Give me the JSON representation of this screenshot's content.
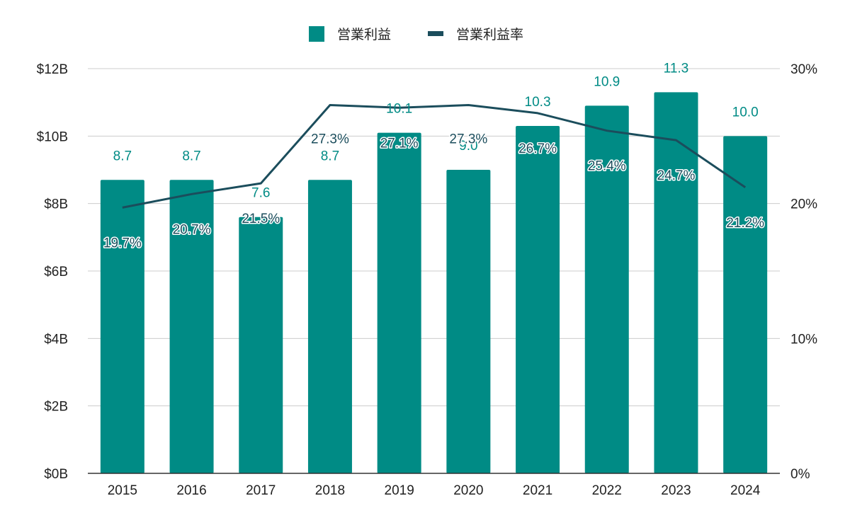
{
  "chart_data": {
    "type": "bar",
    "categories": [
      "2015",
      "2016",
      "2017",
      "2018",
      "2019",
      "2020",
      "2021",
      "2022",
      "2023",
      "2024"
    ],
    "series": [
      {
        "name": "営業利益",
        "type": "bar",
        "axis": "left",
        "color": "#008b85",
        "values": [
          8.7,
          8.7,
          7.6,
          8.7,
          10.1,
          9.0,
          10.3,
          10.9,
          11.3,
          10.0
        ],
        "labels": [
          "8.7",
          "8.7",
          "7.6",
          "8.7",
          "10.1",
          "9.0",
          "10.3",
          "10.9",
          "11.3",
          "10.0"
        ]
      },
      {
        "name": "営業利益率",
        "type": "line",
        "axis": "right",
        "color": "#1b4d5c",
        "values": [
          19.7,
          20.7,
          21.5,
          27.3,
          27.1,
          27.3,
          26.7,
          25.4,
          24.7,
          21.2
        ],
        "labels": [
          "19.7%",
          "20.7%",
          "21.5%",
          "27.3%",
          "27.1%",
          "27.3%",
          "26.7%",
          "25.4%",
          "24.7%",
          "21.2%"
        ]
      }
    ],
    "y_left": {
      "ticks": [
        0,
        2,
        4,
        6,
        8,
        10,
        12
      ],
      "tick_labels": [
        "$0B",
        "$2B",
        "$4B",
        "$6B",
        "$8B",
        "$10B",
        "$12B"
      ],
      "ylim": [
        0,
        12
      ]
    },
    "y_right": {
      "ticks": [
        0,
        10,
        20,
        30
      ],
      "tick_labels": [
        "0%",
        "10%",
        "20%",
        "30%"
      ],
      "ylim": [
        0,
        30
      ]
    },
    "title": "",
    "xlabel": "",
    "ylabel": "",
    "grid": true,
    "legend_position": "top-center",
    "colors": {
      "bar": "#008b85",
      "line": "#1b4d5c",
      "grid": "#cccccc",
      "axis": "#333333"
    }
  }
}
